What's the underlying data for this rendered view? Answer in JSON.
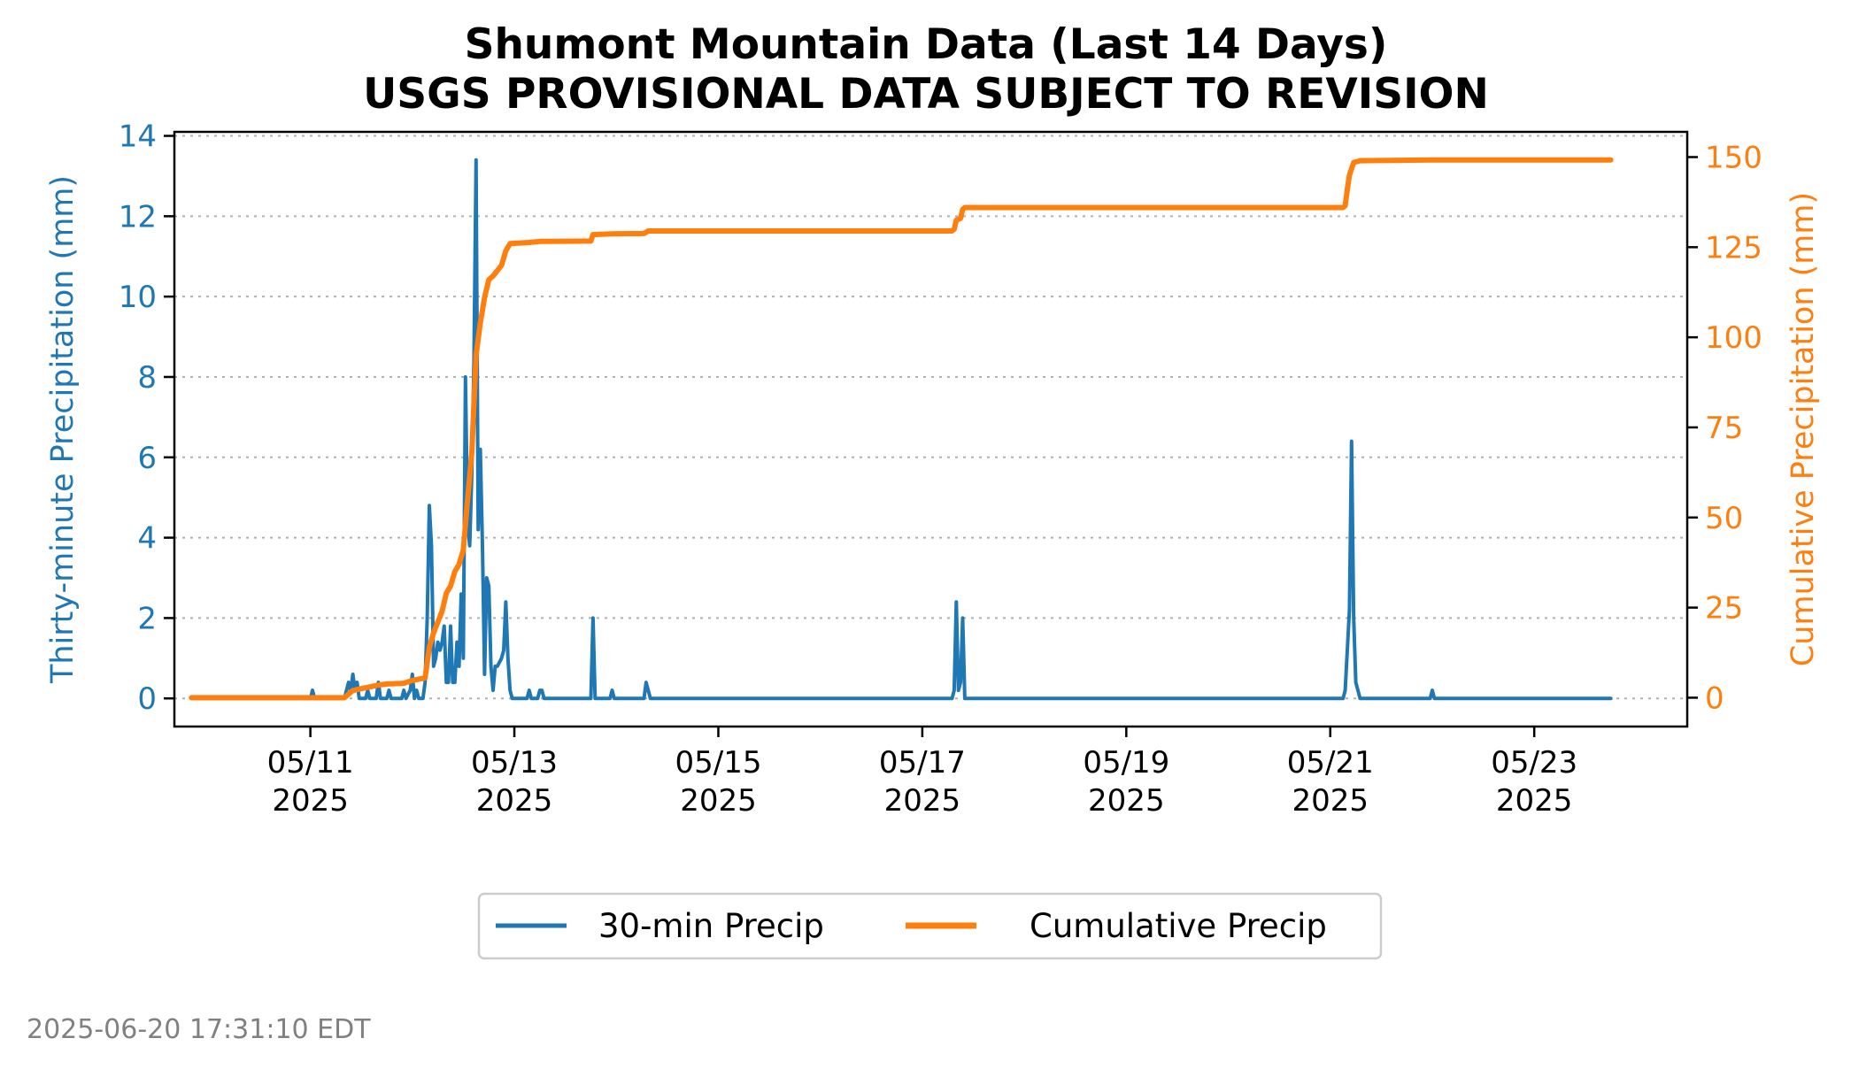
{
  "chart_data": {
    "type": "line",
    "title": "Shumont Mountain Data (Last 14 Days)",
    "subtitle": "USGS PROVISIONAL DATA SUBJECT TO REVISION",
    "ylabel": "Thirty-minute Precipitation (mm)",
    "ylabel_right": "Cumulative Precipitation (mm)",
    "ylim": [
      -0.7,
      14.1
    ],
    "ylim_right": [
      -8,
      157
    ],
    "xlim": [
      "2025-05-09T16:00",
      "2025-05-24T12:00"
    ],
    "x_ticks": [
      "2025-05-11",
      "2025-05-13",
      "2025-05-15",
      "2025-05-17",
      "2025-05-19",
      "2025-05-21",
      "2025-05-23"
    ],
    "x_tick_labels": [
      [
        "05/11",
        "2025"
      ],
      [
        "05/13",
        "2025"
      ],
      [
        "05/15",
        "2025"
      ],
      [
        "05/17",
        "2025"
      ],
      [
        "05/19",
        "2025"
      ],
      [
        "05/21",
        "2025"
      ],
      [
        "05/23",
        "2025"
      ]
    ],
    "y_ticks_left": [
      "0",
      "2",
      "4",
      "6",
      "8",
      "10",
      "12",
      "14"
    ],
    "y_ticks_right": [
      "0",
      "25",
      "50",
      "75",
      "100",
      "125",
      "150"
    ],
    "grid": "horizontal dotted",
    "legend": "below chart, centered",
    "series": [
      {
        "name": "30-min Precip",
        "axis": "left",
        "color": "#1f77b4",
        "points": [
          [
            "2025-05-09T20:00",
            0
          ],
          [
            "2025-05-11T00:00",
            0
          ],
          [
            "2025-05-11T00:30",
            0.2
          ],
          [
            "2025-05-11T01:00",
            0
          ],
          [
            "2025-05-11T08:00",
            0
          ],
          [
            "2025-05-11T09:00",
            0.4
          ],
          [
            "2025-05-11T09:30",
            0.2
          ],
          [
            "2025-05-11T10:00",
            0.6
          ],
          [
            "2025-05-11T10:30",
            0.2
          ],
          [
            "2025-05-11T11:00",
            0.4
          ],
          [
            "2025-05-11T11:30",
            0
          ],
          [
            "2025-05-11T13:00",
            0
          ],
          [
            "2025-05-11T13:30",
            0.2
          ],
          [
            "2025-05-11T14:00",
            0
          ],
          [
            "2025-05-11T15:30",
            0
          ],
          [
            "2025-05-11T16:00",
            0.4
          ],
          [
            "2025-05-11T16:30",
            0
          ],
          [
            "2025-05-11T18:00",
            0
          ],
          [
            "2025-05-11T18:30",
            0.2
          ],
          [
            "2025-05-11T19:00",
            0
          ],
          [
            "2025-05-11T21:30",
            0
          ],
          [
            "2025-05-11T22:00",
            0.2
          ],
          [
            "2025-05-11T22:30",
            0
          ],
          [
            "2025-05-11T23:30",
            0.2
          ],
          [
            "2025-05-12T00:00",
            0.6
          ],
          [
            "2025-05-12T00:30",
            0
          ],
          [
            "2025-05-12T01:00",
            0.2
          ],
          [
            "2025-05-12T01:30",
            0
          ],
          [
            "2025-05-12T02:30",
            0
          ],
          [
            "2025-05-12T03:00",
            0.4
          ],
          [
            "2025-05-12T03:30",
            2.0
          ],
          [
            "2025-05-12T04:00",
            4.8
          ],
          [
            "2025-05-12T04:30",
            3.8
          ],
          [
            "2025-05-12T05:00",
            0.8
          ],
          [
            "2025-05-12T05:30",
            1.0
          ],
          [
            "2025-05-12T06:00",
            1.4
          ],
          [
            "2025-05-12T06:30",
            1.2
          ],
          [
            "2025-05-12T07:00",
            1.4
          ],
          [
            "2025-05-12T07:30",
            1.8
          ],
          [
            "2025-05-12T08:00",
            0.4
          ],
          [
            "2025-05-12T08:30",
            0.4
          ],
          [
            "2025-05-12T09:00",
            1.8
          ],
          [
            "2025-05-12T09:30",
            0.4
          ],
          [
            "2025-05-12T10:00",
            0.4
          ],
          [
            "2025-05-12T10:30",
            1.4
          ],
          [
            "2025-05-12T11:00",
            0.8
          ],
          [
            "2025-05-12T11:30",
            2.6
          ],
          [
            "2025-05-12T12:00",
            1.0
          ],
          [
            "2025-05-12T12:30",
            8.0
          ],
          [
            "2025-05-12T13:00",
            4.4
          ],
          [
            "2025-05-12T13:30",
            3.8
          ],
          [
            "2025-05-12T14:00",
            5.6
          ],
          [
            "2025-05-12T14:30",
            8.4
          ],
          [
            "2025-05-12T15:00",
            13.4
          ],
          [
            "2025-05-12T15:30",
            4.2
          ],
          [
            "2025-05-12T16:00",
            6.2
          ],
          [
            "2025-05-12T16:30",
            3.8
          ],
          [
            "2025-05-12T17:00",
            0.6
          ],
          [
            "2025-05-12T17:30",
            3.0
          ],
          [
            "2025-05-12T18:00",
            2.8
          ],
          [
            "2025-05-12T18:30",
            0.8
          ],
          [
            "2025-05-12T19:00",
            0.2
          ],
          [
            "2025-05-12T19:30",
            0.8
          ],
          [
            "2025-05-12T20:00",
            0.8
          ],
          [
            "2025-05-12T21:00",
            1.0
          ],
          [
            "2025-05-12T21:30",
            1.2
          ],
          [
            "2025-05-12T22:00",
            2.4
          ],
          [
            "2025-05-12T22:30",
            1.0
          ],
          [
            "2025-05-12T23:00",
            0.2
          ],
          [
            "2025-05-12T23:30",
            0
          ],
          [
            "2025-05-13T03:00",
            0
          ],
          [
            "2025-05-13T03:30",
            0.2
          ],
          [
            "2025-05-13T04:00",
            0
          ],
          [
            "2025-05-13T05:30",
            0
          ],
          [
            "2025-05-13T06:00",
            0.2
          ],
          [
            "2025-05-13T06:30",
            0.2
          ],
          [
            "2025-05-13T07:00",
            0
          ],
          [
            "2025-05-13T18:00",
            0
          ],
          [
            "2025-05-13T18:30",
            2.0
          ],
          [
            "2025-05-13T19:00",
            0
          ],
          [
            "2025-05-13T22:30",
            0
          ],
          [
            "2025-05-13T23:00",
            0.2
          ],
          [
            "2025-05-13T23:30",
            0
          ],
          [
            "2025-05-14T06:30",
            0
          ],
          [
            "2025-05-14T07:00",
            0.4
          ],
          [
            "2025-05-14T07:30",
            0.2
          ],
          [
            "2025-05-14T08:00",
            0
          ],
          [
            "2025-05-17T07:00",
            0
          ],
          [
            "2025-05-17T07:30",
            0.2
          ],
          [
            "2025-05-17T08:00",
            2.4
          ],
          [
            "2025-05-17T08:30",
            0.2
          ],
          [
            "2025-05-17T09:00",
            0.4
          ],
          [
            "2025-05-17T09:30",
            2.0
          ],
          [
            "2025-05-17T10:00",
            0
          ],
          [
            "2025-05-21T03:00",
            0
          ],
          [
            "2025-05-21T03:30",
            0.2
          ],
          [
            "2025-05-21T04:30",
            2.2
          ],
          [
            "2025-05-21T05:00",
            6.4
          ],
          [
            "2025-05-21T05:30",
            2.0
          ],
          [
            "2025-05-21T06:00",
            0.4
          ],
          [
            "2025-05-21T06:30",
            0.2
          ],
          [
            "2025-05-21T07:00",
            0
          ],
          [
            "2025-05-21T23:30",
            0
          ],
          [
            "2025-05-22T00:00",
            0.2
          ],
          [
            "2025-05-22T00:30",
            0
          ],
          [
            "2025-05-23T18:00",
            0
          ]
        ]
      },
      {
        "name": "Cumulative Precip",
        "axis": "right",
        "color": "#ff7f0e",
        "points": [
          [
            "2025-05-09T20:00",
            0
          ],
          [
            "2025-05-11T08:00",
            0
          ],
          [
            "2025-05-11T10:00",
            2
          ],
          [
            "2025-05-11T12:00",
            2.5
          ],
          [
            "2025-05-11T14:00",
            3
          ],
          [
            "2025-05-11T16:00",
            3.5
          ],
          [
            "2025-05-11T18:00",
            3.8
          ],
          [
            "2025-05-11T22:00",
            4
          ],
          [
            "2025-05-12T00:00",
            4.8
          ],
          [
            "2025-05-12T03:00",
            5.5
          ],
          [
            "2025-05-12T04:00",
            14
          ],
          [
            "2025-05-12T05:00",
            18
          ],
          [
            "2025-05-12T07:00",
            24
          ],
          [
            "2025-05-12T08:00",
            29
          ],
          [
            "2025-05-12T09:00",
            31
          ],
          [
            "2025-05-12T10:00",
            35
          ],
          [
            "2025-05-12T11:00",
            37
          ],
          [
            "2025-05-12T12:00",
            41
          ],
          [
            "2025-05-12T13:00",
            55
          ],
          [
            "2025-05-12T14:00",
            68
          ],
          [
            "2025-05-12T15:00",
            95
          ],
          [
            "2025-05-12T16:00",
            104
          ],
          [
            "2025-05-12T17:00",
            111
          ],
          [
            "2025-05-12T18:00",
            116
          ],
          [
            "2025-05-12T19:00",
            117
          ],
          [
            "2025-05-12T21:00",
            120
          ],
          [
            "2025-05-12T22:00",
            124
          ],
          [
            "2025-05-12T23:00",
            126
          ],
          [
            "2025-05-13T03:30",
            126.3
          ],
          [
            "2025-05-13T06:00",
            126.6
          ],
          [
            "2025-05-13T18:00",
            126.7
          ],
          [
            "2025-05-13T18:30",
            128.5
          ],
          [
            "2025-05-13T23:00",
            128.7
          ],
          [
            "2025-05-14T06:30",
            128.8
          ],
          [
            "2025-05-14T07:30",
            129.5
          ],
          [
            "2025-05-17T07:00",
            129.5
          ],
          [
            "2025-05-17T07:30",
            130
          ],
          [
            "2025-05-17T08:00",
            132.5
          ],
          [
            "2025-05-17T09:00",
            133
          ],
          [
            "2025-05-17T09:30",
            135.5
          ],
          [
            "2025-05-17T10:00",
            136
          ],
          [
            "2025-05-21T03:00",
            136
          ],
          [
            "2025-05-21T03:30",
            136.5
          ],
          [
            "2025-05-21T04:00",
            141
          ],
          [
            "2025-05-21T04:30",
            145
          ],
          [
            "2025-05-21T05:30",
            148.5
          ],
          [
            "2025-05-21T07:00",
            149
          ],
          [
            "2025-05-22T00:00",
            149.2
          ],
          [
            "2025-05-23T18:00",
            149.2
          ]
        ]
      }
    ]
  },
  "footer": {
    "timestamp": "2025-06-20 17:31:10 EDT"
  }
}
